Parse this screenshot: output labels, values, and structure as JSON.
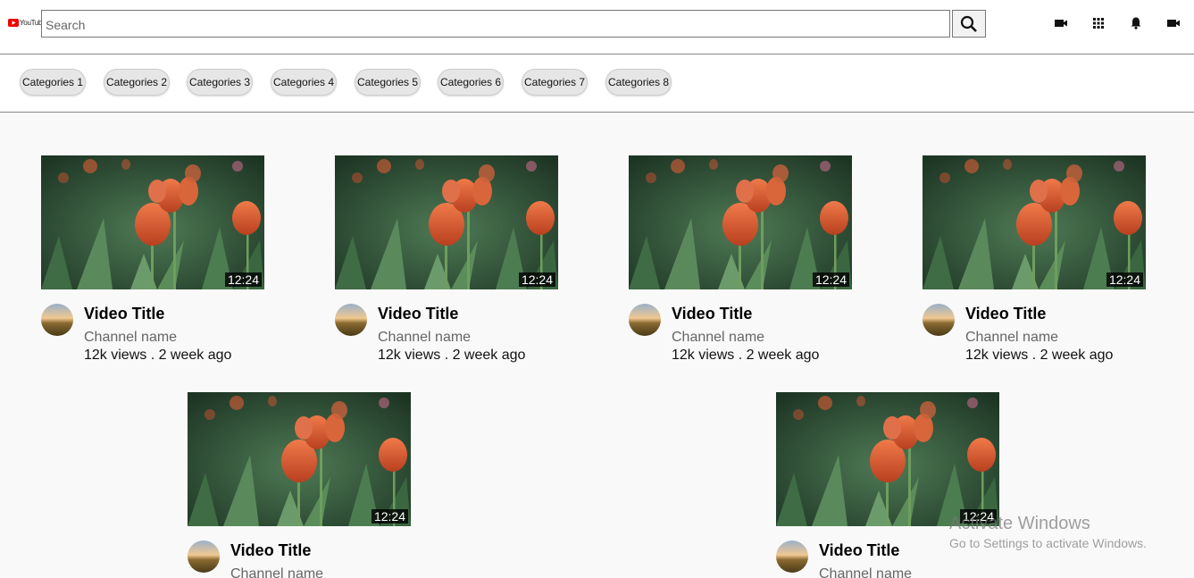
{
  "header": {
    "logo_text": "YouTube",
    "search_placeholder": "Search"
  },
  "categories": [
    "Categories 1",
    "Categories 2",
    "Categories 3",
    "Categories 4",
    "Categories 5",
    "Categories 6",
    "Categories 7",
    "Categories 8"
  ],
  "videos": [
    {
      "duration": "12:24",
      "title": "Video Title",
      "channel": "Channel name",
      "meta": "12k views . 2 week ago"
    },
    {
      "duration": "12:24",
      "title": "Video Title",
      "channel": "Channel name",
      "meta": "12k views . 2 week ago"
    },
    {
      "duration": "12:24",
      "title": "Video Title",
      "channel": "Channel name",
      "meta": "12k views . 2 week ago"
    },
    {
      "duration": "12:24",
      "title": "Video Title",
      "channel": "Channel name",
      "meta": "12k views . 2 week ago"
    },
    {
      "duration": "12:24",
      "title": "Video Title",
      "channel": "Channel name"
    },
    {
      "duration": "12:24",
      "title": "Video Title",
      "channel": "Channel name"
    }
  ],
  "watermark": {
    "title": "Activate Windows",
    "subtitle": "Go to Settings to activate Windows."
  }
}
